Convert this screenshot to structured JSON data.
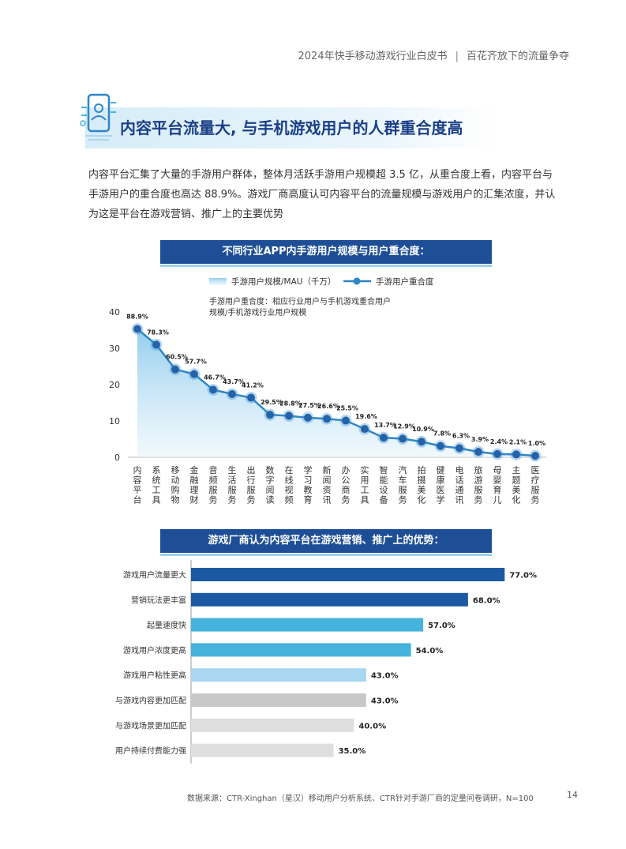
{
  "header": {
    "left": "2024年快手移动游戏行业白皮书",
    "separator": "|",
    "right": "百花齐放下的流量争夺"
  },
  "section_title": "内容平台流量大, 与手机游戏用户的人群重合度高",
  "intro": "内容平台汇集了大量的手游用户群体，整体月活跃手游用户规模超 3.5 亿，从重合度上看，内容平台与手游用户的重合度也高达 88.9%。游戏厂商高度认可内容平台的流量规模与游戏用户的汇集浓度，并认为这是平台在游戏营销、推广上的主要优势",
  "chart1_heading": "不同行业APP内手游用户规模与用户重合度：",
  "chart2_heading": "游戏厂商认为内容平台在游戏营销、推广上的优势：",
  "footer": {
    "source": "数据来源：CTR-Xinghan（星汉）移动用户分析系统、CTR针对手游厂商的定量问卷调研，N=100",
    "page": "14"
  },
  "colors": {
    "navy": "#1e4f96",
    "dark_blue": "#1b5aa3",
    "mid_blue": "#45b3dc",
    "light_blue": "#a9d6f0",
    "gray": "#c8c8c8",
    "light_gray": "#dedede",
    "line": "#2f86c8"
  },
  "chart_data": [
    {
      "type": "line",
      "legend": {
        "area_series": "手游用户规模/MAU（千万）",
        "line_series": "手游用户重合度",
        "position": "top"
      },
      "annotation": [
        "手游用户重合度：相应行业用户与手机游戏重合用户",
        "规模/手机游戏行业用户规模"
      ],
      "y_ticks": [
        "0",
        "10",
        "20",
        "30",
        "40"
      ],
      "ylim": [
        0,
        40
      ],
      "categories": [
        "内容平台",
        "系统工具",
        "移动购物",
        "金融理财",
        "音频服务",
        "生活服务",
        "出行服务",
        "数字阅读",
        "在线视频",
        "学习教育",
        "新闻资讯",
        "办公商务",
        "实用工具",
        "智能设备",
        "汽车服务",
        "拍摄美化",
        "健康医学",
        "电话通讯",
        "旅游服务",
        "母婴育儿",
        "主题美化",
        "医疗服务"
      ],
      "series": [
        {
          "name": "手游用户规模/MAU（千万）",
          "values": [
            35.3,
            31.0,
            24.2,
            22.9,
            18.6,
            17.4,
            16.4,
            11.7,
            11.4,
            10.9,
            10.6,
            10.1,
            7.8,
            5.4,
            5.1,
            4.3,
            3.1,
            2.5,
            1.5,
            0.9,
            0.8,
            0.4
          ]
        }
      ],
      "data_labels": [
        "88.9%",
        "78.3%",
        "60.5%",
        "57.7%",
        "46.7%",
        "43.7%",
        "41.2%",
        "29.5%",
        "28.8%",
        "27.5%",
        "26.6%",
        "25.5%",
        "19.6%",
        "13.7%",
        "12.9%",
        "10.9%",
        "7.8%",
        "6.3%",
        "3.9%",
        "2.4%",
        "2.1%",
        "1.0%"
      ]
    },
    {
      "type": "bar",
      "orientation": "horizontal",
      "categories": [
        "游戏用户流量更大",
        "营销玩法更丰富",
        "起量速度快",
        "游戏用户浓度更高",
        "游戏用户粘性更高",
        "与游戏内容更加匹配",
        "与游戏场景更加匹配",
        "用户持续付费能力强"
      ],
      "values": [
        77.0,
        68.0,
        57.0,
        54.0,
        43.0,
        43.0,
        40.0,
        35.0
      ],
      "value_labels": [
        "77.0%",
        "68.0%",
        "57.0%",
        "54.0%",
        "43.0%",
        "43.0%",
        "40.0%",
        "35.0%"
      ],
      "bar_colors": [
        "#1b5aa3",
        "#1b5aa3",
        "#45b3dc",
        "#45b3dc",
        "#a9d6f0",
        "#c8c8c8",
        "#dedede",
        "#dedede"
      ]
    }
  ]
}
